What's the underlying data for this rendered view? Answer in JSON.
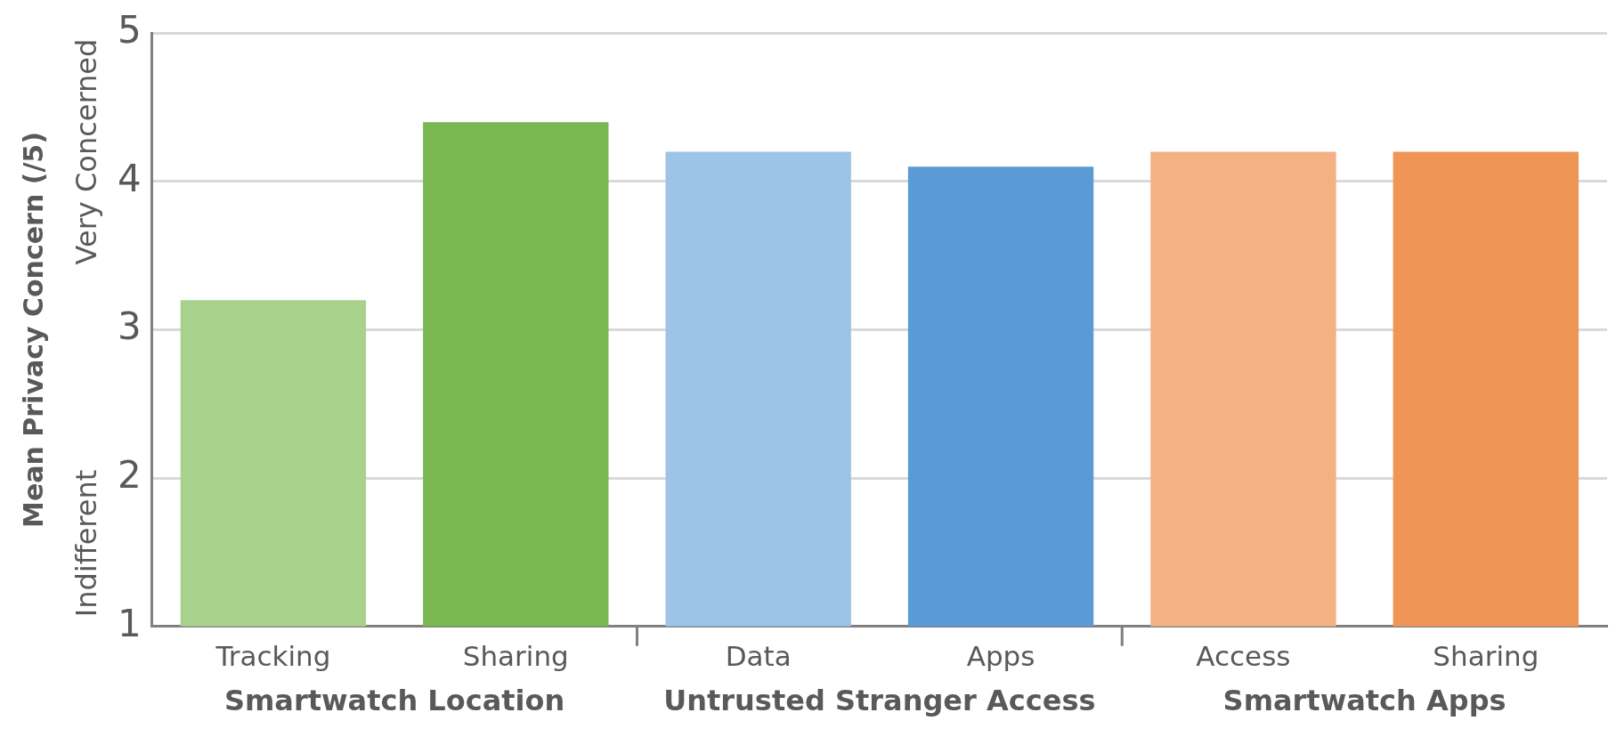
{
  "chart_data": {
    "type": "bar",
    "ylabel": "Mean Privacy Concern (/5)",
    "categories": [
      "Tracking",
      "Sharing",
      "Data",
      "Apps",
      "Access",
      "Sharing"
    ],
    "values": [
      3.2,
      4.4,
      4.2,
      4.1,
      4.2,
      4.2
    ],
    "colors": [
      "#a9d18e",
      "#7ab753",
      "#9dc3e6",
      "#5b9bd5",
      "#f4b183",
      "#ef9556"
    ],
    "ylim": [
      1,
      5
    ],
    "yticks": [
      1,
      2,
      3,
      4,
      5
    ],
    "grid": "y",
    "legend": false,
    "annotations": [
      "Smartwatch Location",
      "Untrusted Stranger Access",
      "Smartwatch Apps",
      "Indifferent",
      "Very Concerned"
    ]
  }
}
